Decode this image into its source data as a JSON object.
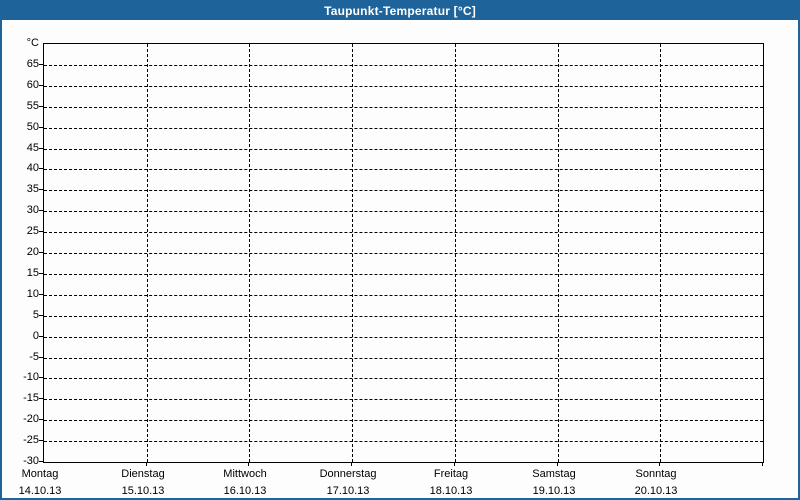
{
  "window": {
    "title": "Taupunkt-Temperatur [°C]"
  },
  "colors": {
    "titlebar": "#1e6399",
    "frame_border": "#1e6399",
    "title_text": "#ffffff",
    "axis": "#000000",
    "background": "#fdfdfd"
  },
  "chart_data": {
    "type": "line",
    "title": "Taupunkt-Temperatur [°C]",
    "ylabel": "°C",
    "xlabel": "",
    "ylim": [
      -30,
      70
    ],
    "y_tick_step": 5,
    "y_ticks": [
      65,
      60,
      55,
      50,
      45,
      40,
      35,
      30,
      25,
      20,
      15,
      10,
      5,
      0,
      -5,
      -10,
      -15,
      -20,
      -25,
      -30
    ],
    "grid": "dashed",
    "legend_position": "none",
    "series": [],
    "x_categories": [
      {
        "weekday": "Montag",
        "date": "14.10.13"
      },
      {
        "weekday": "Dienstag",
        "date": "15.10.13"
      },
      {
        "weekday": "Mittwoch",
        "date": "16.10.13"
      },
      {
        "weekday": "Donnerstag",
        "date": "17.10.13"
      },
      {
        "weekday": "Freitag",
        "date": "18.10.13"
      },
      {
        "weekday": "Samstag",
        "date": "19.10.13"
      },
      {
        "weekday": "Sonntag",
        "date": "20.10.13"
      }
    ]
  }
}
